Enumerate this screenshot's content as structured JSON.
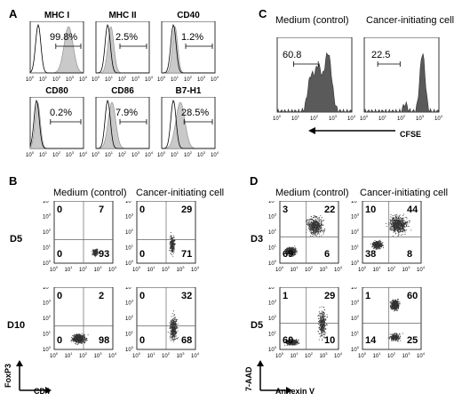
{
  "panels": {
    "A": {
      "letter": "A",
      "histograms": [
        {
          "title": "MHC I",
          "value": "99.8%"
        },
        {
          "title": "MHC II",
          "value": "2.5%"
        },
        {
          "title": "CD40",
          "value": "1.2%"
        },
        {
          "title": "CD80",
          "value": "0.2%"
        },
        {
          "title": "CD86",
          "value": "7.9%"
        },
        {
          "title": "B7-H1",
          "value": "28.5%"
        }
      ]
    },
    "B": {
      "letter": "B",
      "col_heads": [
        "Medium (control)",
        "Cancer-initiating cell"
      ],
      "rows": [
        {
          "label": "D5",
          "plots": [
            {
              "ul": "0",
              "ur": "7",
              "ll": "0",
              "lr": "93"
            },
            {
              "ul": "0",
              "ur": "29",
              "ll": "0",
              "lr": "71"
            }
          ]
        },
        {
          "label": "D10",
          "plots": [
            {
              "ul": "0",
              "ur": "2",
              "ll": "0",
              "lr": "98"
            },
            {
              "ul": "0",
              "ur": "32",
              "ll": "0",
              "lr": "68"
            }
          ]
        }
      ],
      "y_axis": "FoxP3",
      "x_axis": "CD4"
    },
    "C": {
      "letter": "C",
      "col_heads": [
        "Medium (control)",
        "Cancer-initiating cell"
      ],
      "plots": [
        {
          "value": "60.8"
        },
        {
          "value": "22.5"
        }
      ],
      "x_axis": "CFSE"
    },
    "D": {
      "letter": "D",
      "col_heads": [
        "Medium (control)",
        "Cancer-initiating cell"
      ],
      "rows": [
        {
          "label": "D3",
          "plots": [
            {
              "ul": "3",
              "ur": "22",
              "ll": "69",
              "lr": "6"
            },
            {
              "ul": "10",
              "ur": "44",
              "ll": "38",
              "lr": "8"
            }
          ]
        },
        {
          "label": "D5",
          "plots": [
            {
              "ul": "1",
              "ur": "29",
              "ll": "60",
              "lr": "10"
            },
            {
              "ul": "1",
              "ur": "60",
              "ll": "14",
              "lr": "25"
            }
          ]
        }
      ],
      "y_axis": "7-AAD",
      "x_axis": "Annexin V"
    },
    "tick_labels": {
      "x": [
        "10",
        "10",
        "10",
        "10",
        "10"
      ],
      "exp": [
        "0",
        "1",
        "2",
        "3",
        "4"
      ]
    }
  }
}
